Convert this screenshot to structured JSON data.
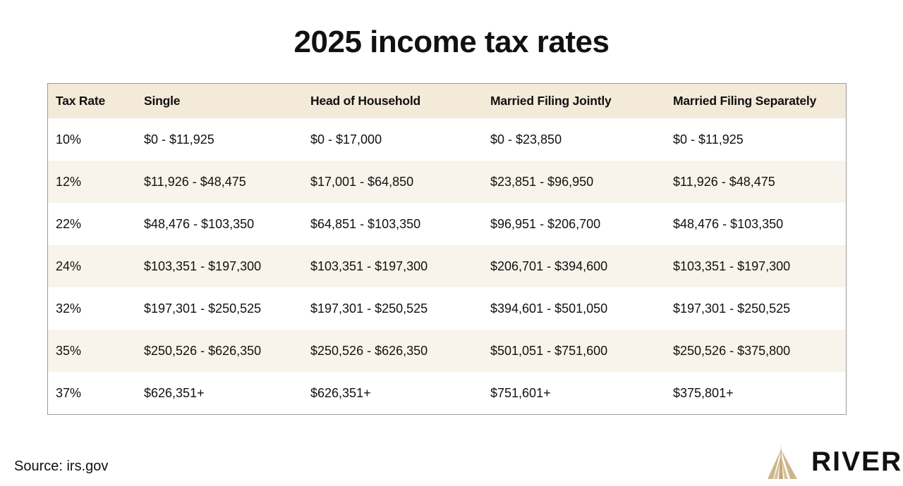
{
  "title": "2025 income tax rates",
  "table": {
    "headers": [
      "Tax Rate",
      "Single",
      "Head of Household",
      "Married Filing Jointly",
      "Married Filing Separately"
    ],
    "rows": [
      [
        "10%",
        "$0 - $11,925",
        "$0 - $17,000",
        "$0 - $23,850",
        "$0 - $11,925"
      ],
      [
        "12%",
        "$11,926 - $48,475",
        "$17,001 - $64,850",
        "$23,851 - $96,950",
        "$11,926 - $48,475"
      ],
      [
        "22%",
        "$48,476 - $103,350",
        "$64,851 - $103,350",
        "$96,951 - $206,700",
        "$48,476 - $103,350"
      ],
      [
        "24%",
        "$103,351 - $197,300",
        "$103,351 - $197,300",
        "$206,701 - $394,600",
        "$103,351 - $197,300"
      ],
      [
        "32%",
        "$197,301 - $250,525",
        "$197,301 - $250,525",
        "$394,601 - $501,050",
        "$197,301 - $250,525"
      ],
      [
        "35%",
        "$250,526 - $626,350",
        "$250,526 - $626,350",
        "$501,051 - $751,600",
        "$250,526 - $375,800"
      ],
      [
        "37%",
        "$626,351+",
        "$626,351+",
        "$751,601+",
        "$375,801+"
      ]
    ]
  },
  "footer": {
    "source": "Source: irs.gov",
    "brand": "RIVER",
    "logo_icon": "river-mountain-logo-icon"
  },
  "colors": {
    "header_bg": "#f3ead9",
    "stripe_bg": "#f8f4eb",
    "logo_gold": "#c4a878"
  }
}
